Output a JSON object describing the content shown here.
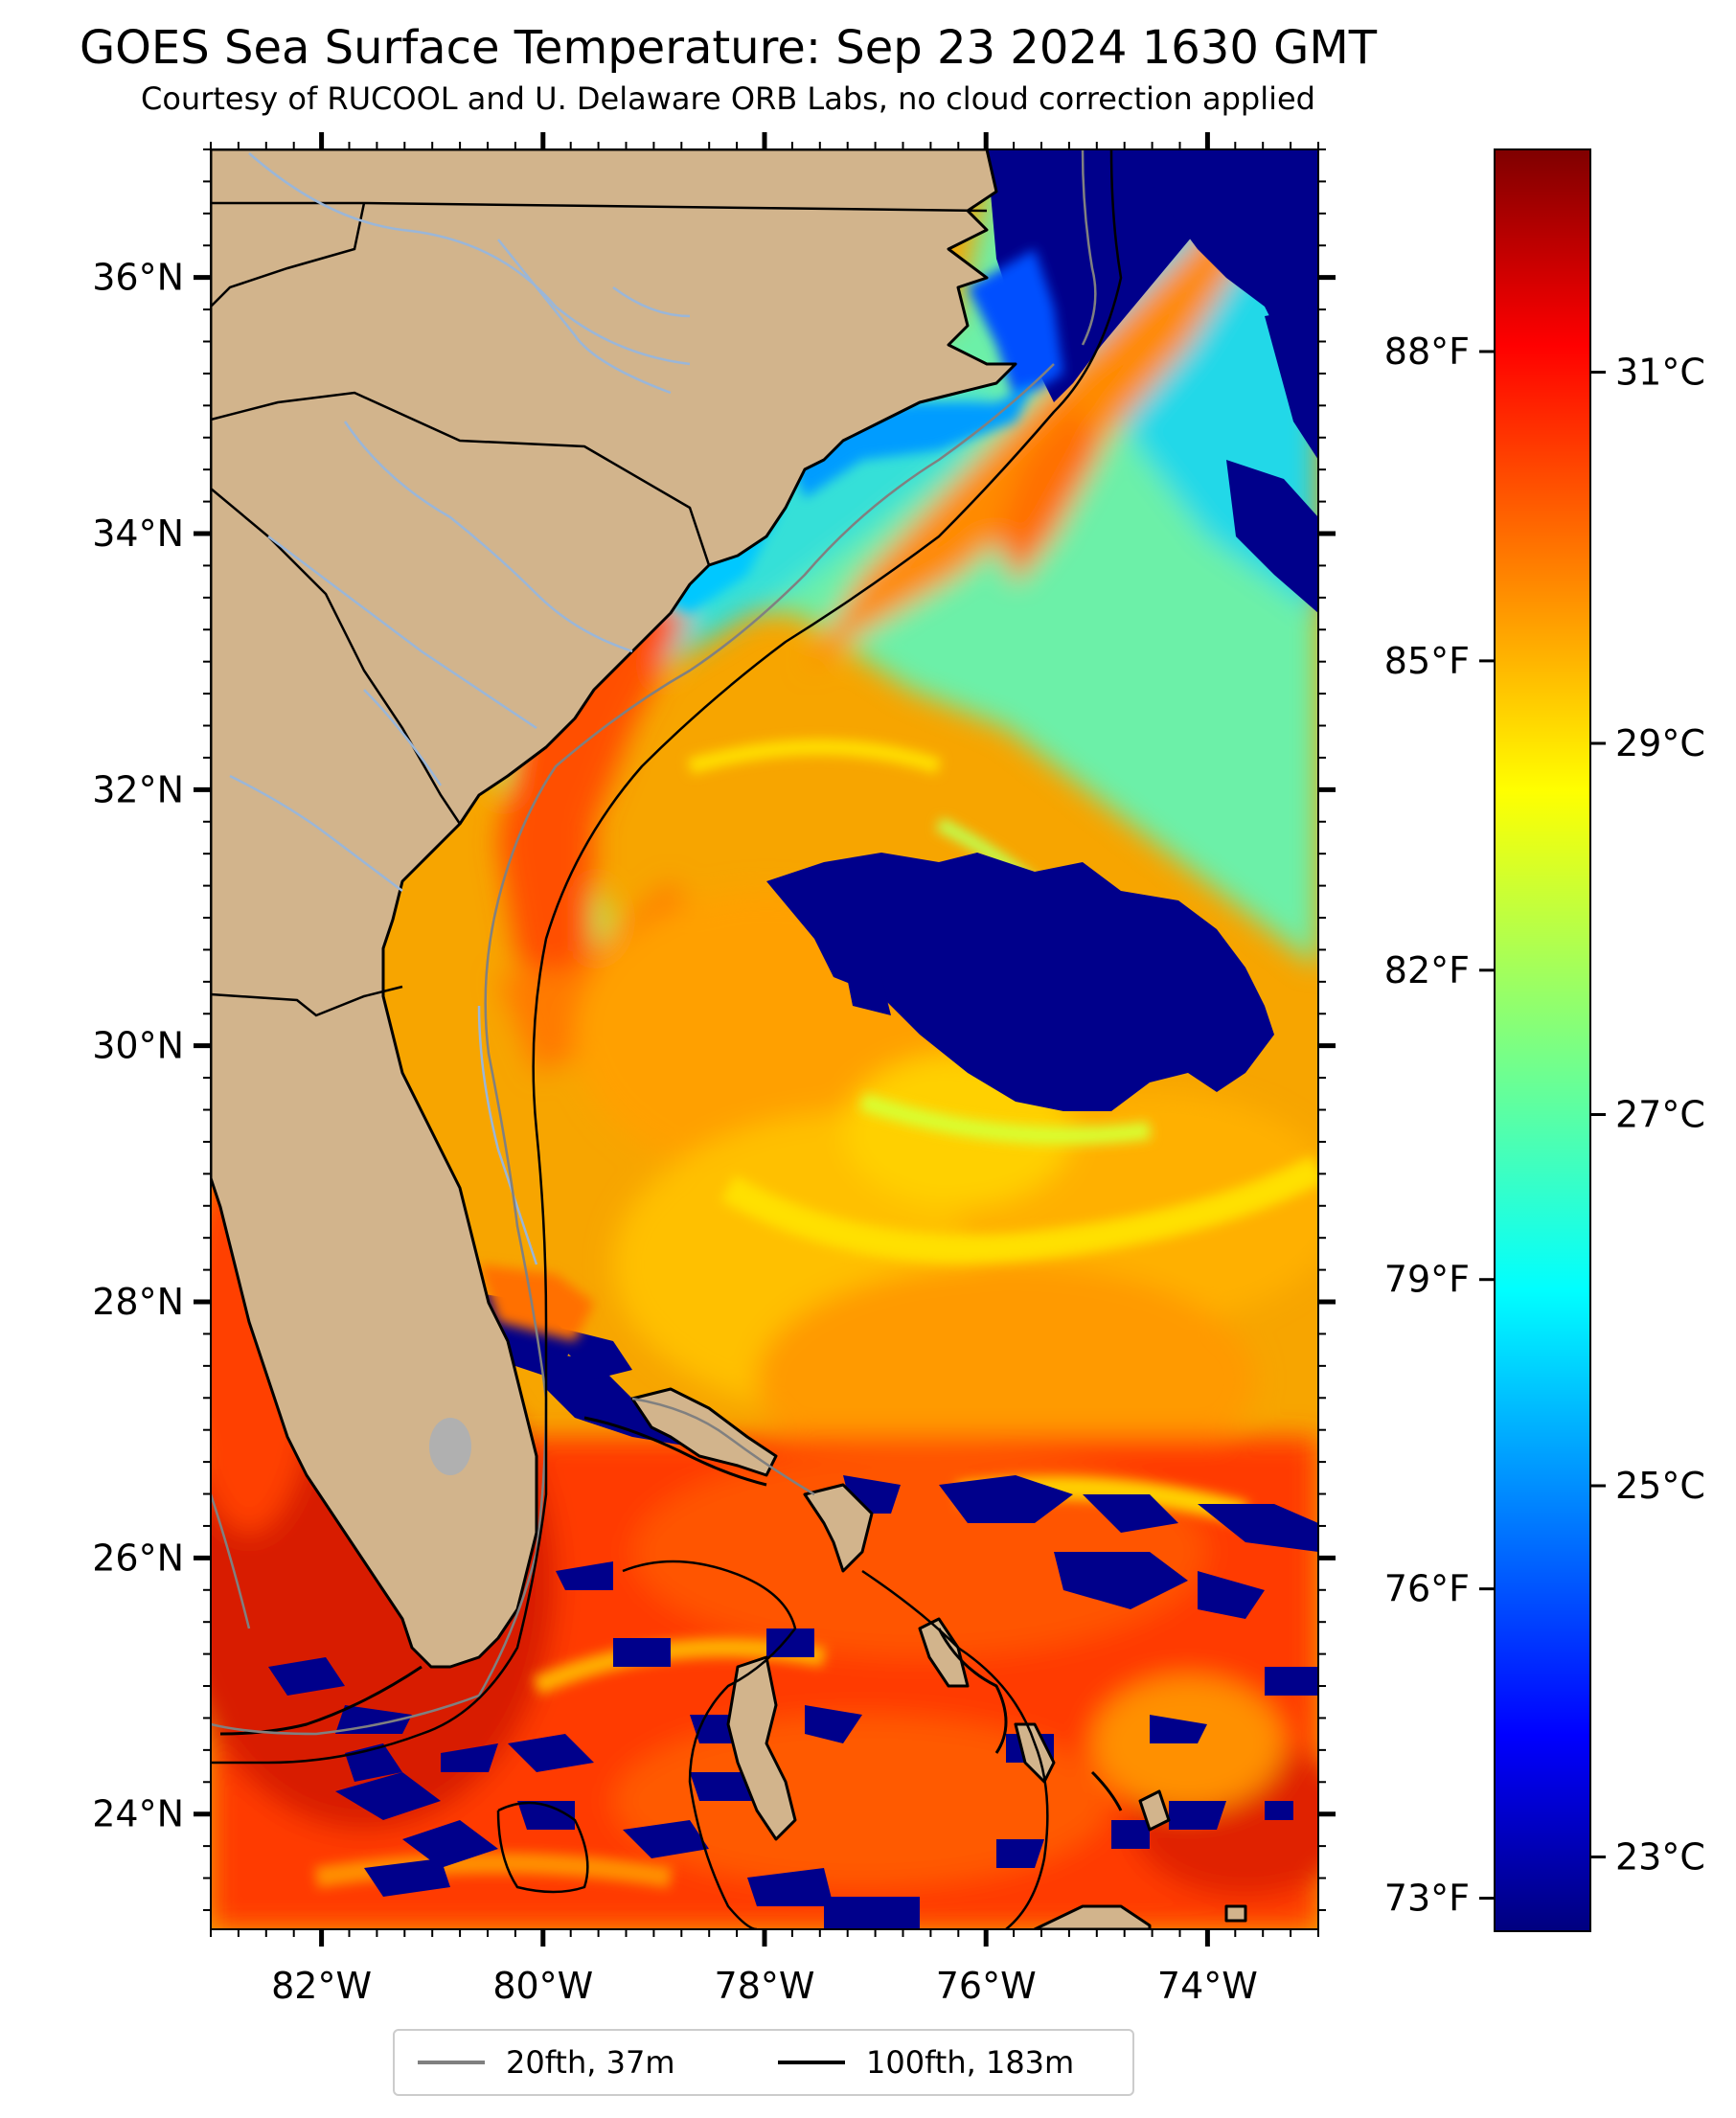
{
  "title": "GOES Sea Surface Temperature: Sep 23 2024 1630 GMT",
  "subtitle": "Courtesy of RUCOOL and U. Delaware ORB Labs, no cloud correction applied",
  "map": {
    "lon_range": [
      -83,
      -73
    ],
    "lat_range": [
      23.1,
      37
    ],
    "lat_ticks": [
      "36°N",
      "34°N",
      "32°N",
      "30°N",
      "28°N",
      "26°N",
      "24°N"
    ],
    "lon_ticks": [
      "82°W",
      "80°W",
      "78°W",
      "76°W",
      "74°W"
    ],
    "land_color": "#d2b48c",
    "cloud_color": "#00008b"
  },
  "colorbar": {
    "colormap": "jet",
    "celsius_ticks": [
      "31°C",
      "29°C",
      "27°C",
      "25°C",
      "23°C"
    ],
    "fahrenheit_ticks": [
      "88°F",
      "85°F",
      "82°F",
      "79°F",
      "76°F",
      "73°F"
    ]
  },
  "legend": {
    "items": [
      {
        "label": "20fth, 37m",
        "color": "#808080"
      },
      {
        "label": "100fth, 183m",
        "color": "#000000"
      }
    ]
  }
}
